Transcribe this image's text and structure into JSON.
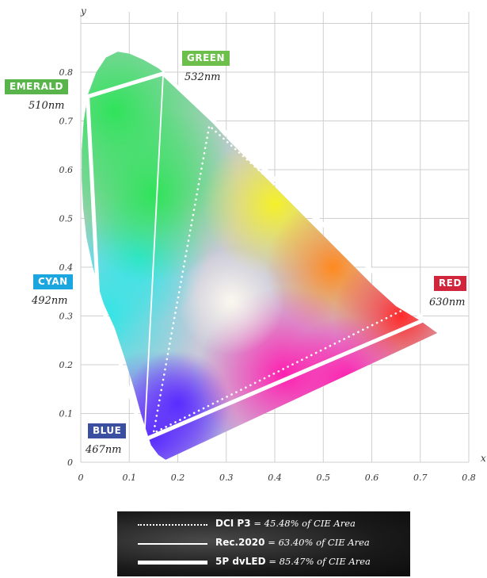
{
  "chart_data": {
    "type": "scatter",
    "xlabel": "x",
    "ylabel": "y",
    "xlim": [
      0,
      0.8
    ],
    "ylim": [
      0,
      0.85
    ],
    "x_ticks": [
      "0",
      "0.1",
      "0.2",
      "0.3",
      "0.4",
      "0.5",
      "0.6",
      "0.7",
      "0.8"
    ],
    "y_ticks": [
      "0",
      "0.1",
      "0.2",
      "0.3",
      "0.4",
      "0.5",
      "0.6",
      "0.7",
      "0.8"
    ],
    "grid": true,
    "spectral_locus": [
      [
        0.175,
        0.005
      ],
      [
        0.16,
        0.015
      ],
      [
        0.145,
        0.035
      ],
      [
        0.135,
        0.065
      ],
      [
        0.124,
        0.1
      ],
      [
        0.11,
        0.15
      ],
      [
        0.09,
        0.215
      ],
      [
        0.07,
        0.275
      ],
      [
        0.045,
        0.33
      ],
      [
        0.025,
        0.4
      ],
      [
        0.012,
        0.46
      ],
      [
        0.005,
        0.52
      ],
      [
        0.002,
        0.58
      ],
      [
        0.002,
        0.64
      ],
      [
        0.006,
        0.7
      ],
      [
        0.015,
        0.755
      ],
      [
        0.032,
        0.8
      ],
      [
        0.052,
        0.83
      ],
      [
        0.076,
        0.842
      ],
      [
        0.1,
        0.838
      ],
      [
        0.13,
        0.825
      ],
      [
        0.16,
        0.808
      ],
      [
        0.2,
        0.775
      ],
      [
        0.25,
        0.72
      ],
      [
        0.3,
        0.665
      ],
      [
        0.35,
        0.615
      ],
      [
        0.4,
        0.565
      ],
      [
        0.45,
        0.515
      ],
      [
        0.5,
        0.465
      ],
      [
        0.55,
        0.415
      ],
      [
        0.6,
        0.365
      ],
      [
        0.65,
        0.32
      ],
      [
        0.7,
        0.29
      ],
      [
        0.735,
        0.265
      ]
    ],
    "primaries": [
      {
        "name": "GREEN",
        "wavelength": "532nm",
        "x": 0.17,
        "y": 0.797,
        "color": "#6cbf4a"
      },
      {
        "name": "EMERALD",
        "wavelength": "510nm",
        "x": 0.014,
        "y": 0.75,
        "color": "#59b54b"
      },
      {
        "name": "CYAN",
        "wavelength": "492nm",
        "x": 0.035,
        "y": 0.35,
        "color": "#1ca6e0"
      },
      {
        "name": "RED",
        "wavelength": "630nm",
        "x": 0.708,
        "y": 0.292,
        "color": "#d0253a"
      },
      {
        "name": "BLUE",
        "wavelength": "467nm",
        "x": 0.131,
        "y": 0.046,
        "color": "#3b4fa0"
      }
    ],
    "series": [
      {
        "name": "DCI P3",
        "value": "= 45.48% of CIE Area",
        "style": "dotted",
        "points": [
          [
            0.68,
            0.32
          ],
          [
            0.265,
            0.69
          ],
          [
            0.15,
            0.06
          ]
        ]
      },
      {
        "name": "Rec.2020",
        "value": "= 63.40% of CIE Area",
        "style": "thin",
        "points": [
          [
            0.708,
            0.292
          ],
          [
            0.17,
            0.797
          ],
          [
            0.131,
            0.046
          ]
        ]
      },
      {
        "name": "5P dvLED",
        "value": "= 85.47% of CIE Area",
        "style": "thick",
        "points": [
          [
            0.17,
            0.797
          ],
          [
            0.708,
            0.292
          ],
          [
            0.131,
            0.046
          ],
          [
            0.035,
            0.35
          ],
          [
            0.014,
            0.75
          ]
        ]
      }
    ]
  }
}
